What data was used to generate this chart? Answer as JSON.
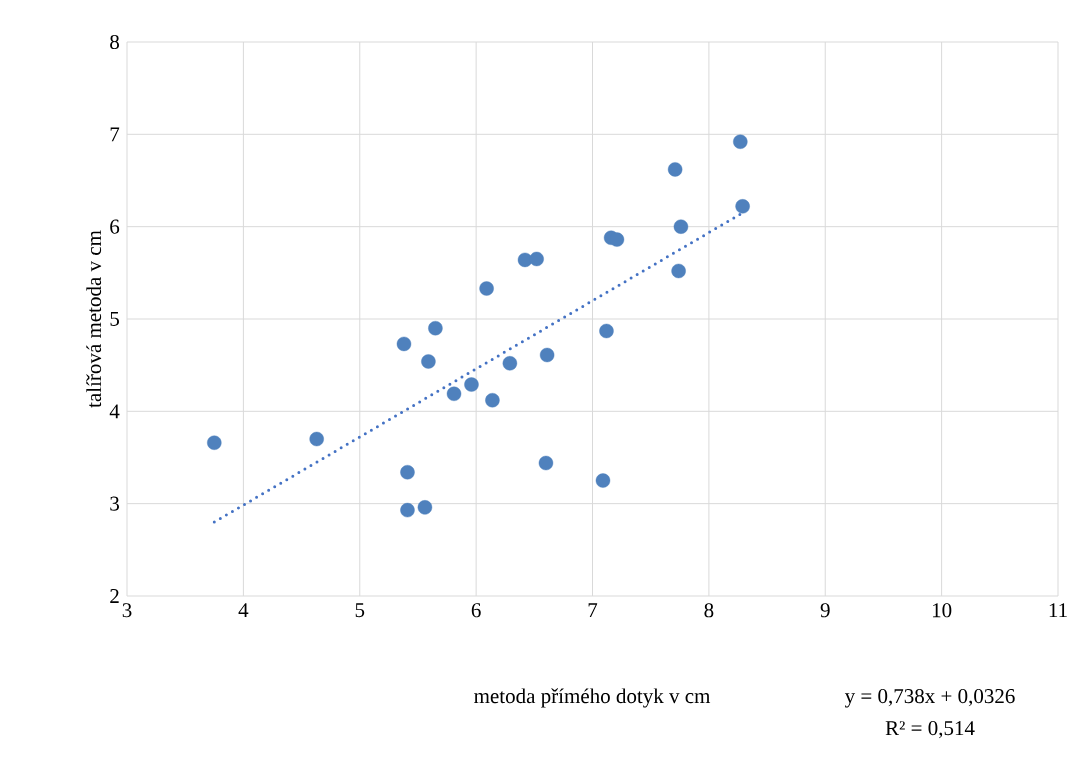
{
  "chart_data": {
    "type": "scatter",
    "xlabel": "metoda přímého dotyk  v cm",
    "ylabel": "talířová metoda v cm",
    "xlim": [
      3,
      11
    ],
    "xticks": [
      3,
      4,
      5,
      6,
      7,
      8,
      9,
      10,
      11
    ],
    "ylim": [
      2,
      8
    ],
    "yticks": [
      2,
      3,
      4,
      5,
      6,
      7,
      8
    ],
    "grid": true,
    "series": [
      {
        "color": "#4f81bd",
        "marker": "circle",
        "x": [
          3.75,
          4.63,
          5.38,
          5.41,
          5.41,
          5.56,
          5.59,
          5.65,
          5.81,
          5.96,
          6.09,
          6.14,
          6.29,
          6.42,
          6.52,
          6.61,
          6.6,
          7.09,
          7.12,
          7.16,
          7.21,
          7.71,
          7.74,
          7.76,
          8.27,
          8.29
        ],
        "values": [
          3.66,
          3.7,
          4.73,
          3.34,
          2.93,
          2.96,
          4.54,
          4.9,
          4.19,
          4.29,
          5.33,
          4.12,
          4.52,
          5.64,
          5.65,
          4.61,
          3.44,
          3.25,
          4.87,
          5.88,
          5.86,
          6.62,
          5.52,
          6.0,
          6.92,
          6.22
        ]
      },
      {
        "type": "line",
        "color": "#4472c4",
        "line_style": "dotted",
        "marker": "none",
        "x": [
          3.75,
          8.29
        ],
        "values": [
          2.8,
          6.15
        ]
      }
    ],
    "annotations": [
      "y = 0,738x + 0,0326",
      "R² = 0,514"
    ]
  }
}
